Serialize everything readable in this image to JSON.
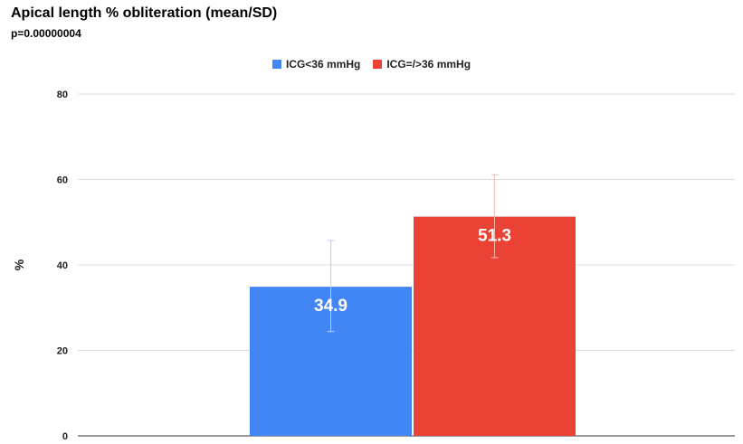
{
  "chart_data": {
    "type": "bar",
    "title": "Apical length % obliteration (mean/SD)",
    "subtitle": "p=0.00000004",
    "ylabel": "%",
    "xlabel": "",
    "ylim": [
      0,
      80
    ],
    "yticks": [
      0,
      20,
      40,
      60,
      80
    ],
    "grid": true,
    "legend_position": "top",
    "series": [
      {
        "name": "ICG<36 mmHg",
        "value": 34.9,
        "label": "34.9",
        "error_low": 24.4,
        "error_high": 45.7,
        "color": "#4285f4",
        "error_color": "#b8cdf6"
      },
      {
        "name": "ICG=/>36 mmHg",
        "value": 51.3,
        "label": "51.3",
        "error_low": 41.7,
        "error_high": 61.1,
        "color": "#ea4335",
        "error_color": "#f5b8ae"
      }
    ]
  }
}
